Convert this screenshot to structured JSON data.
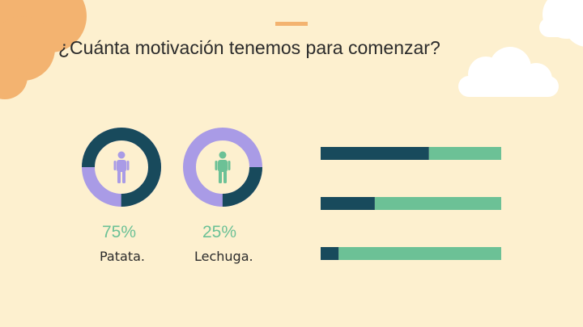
{
  "title": "¿Cuánta motivación tenemos para comenzar?",
  "colors": {
    "background": "#fdf0cf",
    "dark": "#184a5c",
    "purple": "#a99be6",
    "green": "#6cc196",
    "cloud_orange": "#f3b370",
    "cloud_white": "#ffffff"
  },
  "chart_data": [
    {
      "type": "pie",
      "variant": "donut",
      "items": [
        {
          "label": "Patata.",
          "percent_label": "75%",
          "value": 75,
          "color": "#184a5c",
          "icon": "person-icon-purple"
        },
        {
          "label": "Lechuga.",
          "percent_label": "25%",
          "value": 25,
          "color": "#184a5c",
          "icon": "person-icon-green"
        }
      ],
      "remainder_color": "#a99be6"
    },
    {
      "type": "bar",
      "orientation": "horizontal",
      "stacked": true,
      "series": [
        {
          "values": [
            60,
            30,
            10
          ],
          "color": "#184a5c"
        },
        {
          "values": [
            40,
            70,
            90
          ],
          "color": "#6cc196"
        }
      ]
    }
  ]
}
